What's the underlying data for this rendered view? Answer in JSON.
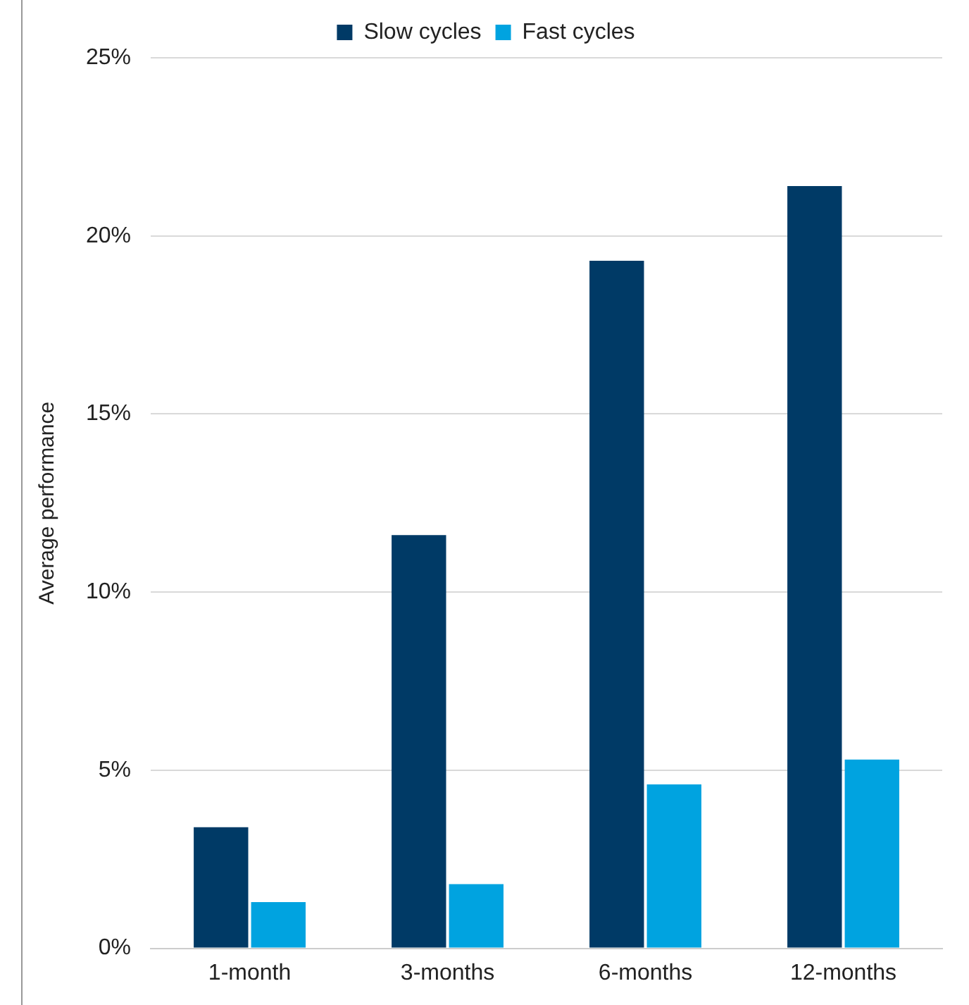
{
  "chart_data": {
    "type": "bar",
    "ylabel": "Average performance",
    "categories": [
      "1-month",
      "3-months",
      "6-months",
      "12-months"
    ],
    "series": [
      {
        "name": "Slow cycles",
        "color": "#003a66",
        "values": [
          3.4,
          11.6,
          19.3,
          21.4
        ]
      },
      {
        "name": "Fast cycles",
        "color": "#00a3e0",
        "values": [
          1.3,
          1.8,
          4.6,
          5.3
        ]
      }
    ],
    "ylim": [
      0,
      25
    ],
    "yticks": [
      {
        "value": 0,
        "label": "0%"
      },
      {
        "value": 5,
        "label": "5%"
      },
      {
        "value": 10,
        "label": "10%"
      },
      {
        "value": 15,
        "label": "15%"
      },
      {
        "value": 20,
        "label": "20%"
      },
      {
        "value": 25,
        "label": "25%"
      }
    ],
    "grid": "y",
    "legend": "top"
  }
}
